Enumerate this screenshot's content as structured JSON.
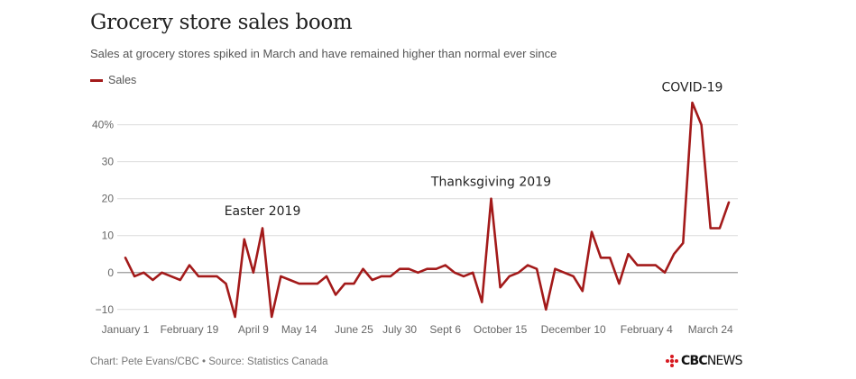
{
  "chart_data": {
    "type": "line",
    "title": "Grocery store sales boom",
    "subtitle": "Sales at grocery stores spiked in March and have remained higher than normal ever since",
    "series": [
      {
        "name": "Sales",
        "color": "#a31a1a",
        "values": [
          4,
          -1,
          0,
          -2,
          0,
          -1,
          -2,
          2,
          -1,
          -1,
          -1,
          -3,
          -12,
          9,
          0,
          12,
          -12,
          -1,
          -2,
          -3,
          -3,
          -3,
          -1,
          -6,
          -3,
          -3,
          1,
          -2,
          -1,
          -1,
          1,
          1,
          0,
          1,
          1,
          2,
          0,
          -1,
          0,
          -8,
          20,
          -4,
          -1,
          0,
          2,
          1,
          -10,
          1,
          0,
          -1,
          -5,
          11,
          4,
          4,
          -3,
          5,
          2,
          2,
          2,
          0,
          5,
          8,
          46,
          40,
          12,
          12,
          19
        ]
      }
    ],
    "x_tick_labels": [
      {
        "label": "January 1",
        "index": 0
      },
      {
        "label": "February 19",
        "index": 7
      },
      {
        "label": "April 9",
        "index": 14
      },
      {
        "label": "May 14",
        "index": 19
      },
      {
        "label": "June 25",
        "index": 25
      },
      {
        "label": "July 30",
        "index": 30
      },
      {
        "label": "Sept 6",
        "index": 35
      },
      {
        "label": "October 15",
        "index": 41
      },
      {
        "label": "December 10",
        "index": 49
      },
      {
        "label": "February 4",
        "index": 57
      },
      {
        "label": "March 24",
        "index": 64
      }
    ],
    "y_ticks": [
      {
        "value": 40,
        "label": "40%"
      },
      {
        "value": 30,
        "label": "30"
      },
      {
        "value": 20,
        "label": "20"
      },
      {
        "value": 10,
        "label": "10"
      },
      {
        "value": 0,
        "label": "0"
      },
      {
        "value": -10,
        "label": "−10"
      }
    ],
    "ylim": [
      -12,
      46
    ],
    "grid": true,
    "legend_position": "top-left",
    "annotations": [
      {
        "text": "Easter 2019",
        "index": 15
      },
      {
        "text": "Thanksgiving 2019",
        "index": 40
      },
      {
        "text": "COVID-19",
        "index": 62
      }
    ]
  },
  "legend_label": "Sales",
  "footer": "Chart: Pete Evans/CBC • Source: Statistics Canada",
  "logo": {
    "bold": "CBC",
    "light": "NEWS",
    "color": "#d71920"
  }
}
